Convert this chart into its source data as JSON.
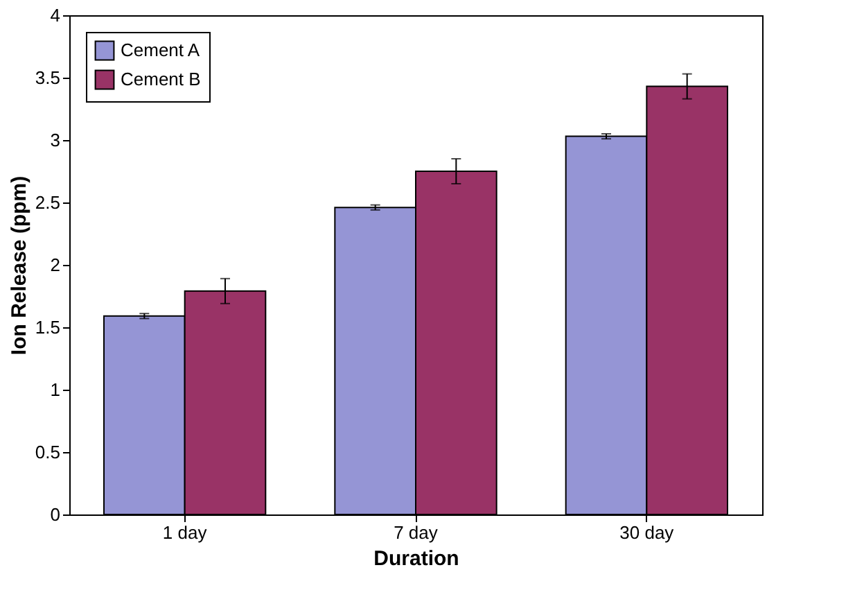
{
  "chart_data": {
    "type": "bar",
    "xlabel": "Duration",
    "ylabel": "Ion Release (ppm)",
    "categories": [
      "1 day",
      "7 day",
      "30 day"
    ],
    "series": [
      {
        "name": "Cement A",
        "color": "#9595d5",
        "values": [
          1.59,
          2.46,
          3.03
        ],
        "errors": [
          0.02,
          0.02,
          0.02
        ]
      },
      {
        "name": "Cement B",
        "color": "#993366",
        "values": [
          1.79,
          2.75,
          3.43
        ],
        "errors": [
          0.1,
          0.1,
          0.1
        ]
      }
    ],
    "ylim": [
      0,
      4
    ],
    "yticks": [
      0,
      0.5,
      1,
      1.5,
      2,
      2.5,
      3,
      3.5,
      4
    ],
    "grid": false,
    "legend": "top left"
  }
}
